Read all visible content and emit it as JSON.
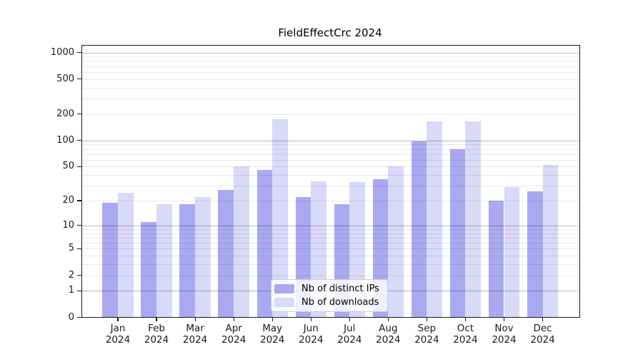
{
  "title": "FieldEffectCrc 2024",
  "chart_data": {
    "type": "bar",
    "title": "FieldEffectCrc 2024",
    "categories": [
      "Jan 2024",
      "Feb 2024",
      "Mar 2024",
      "Apr 2024",
      "May 2024",
      "Jun 2024",
      "Jul 2024",
      "Aug 2024",
      "Sep 2024",
      "Oct 2024",
      "Nov 2024",
      "Dec 2024"
    ],
    "series": [
      {
        "name": "Nb of distinct IPs",
        "color": "#a9a9f1",
        "values": [
          19,
          11,
          18,
          27,
          46,
          22,
          18,
          36,
          97,
          80,
          20,
          26
        ]
      },
      {
        "name": "Nb of downloads",
        "color": "#d9d9f8",
        "values": [
          25,
          18,
          22,
          50,
          175,
          34,
          33,
          50,
          166,
          166,
          29,
          52
        ]
      }
    ],
    "xlabel": "",
    "ylabel": "",
    "yscale": "log1p",
    "yticks": [
      0,
      1,
      2,
      5,
      10,
      20,
      50,
      100,
      200,
      500,
      1000
    ],
    "major_grid_values": [
      1,
      10,
      100,
      1000
    ],
    "ylim": [
      0,
      1228
    ],
    "grid": "on",
    "legend_position": "lower center",
    "colors": {
      "bar_dark": "#a9a9f1",
      "bar_light": "#d9d9f8",
      "major_grid": "rgba(0,0,0,0.28)",
      "minor_grid": "rgba(0,0,0,0.09)",
      "axis": "#1a1a1a"
    }
  }
}
